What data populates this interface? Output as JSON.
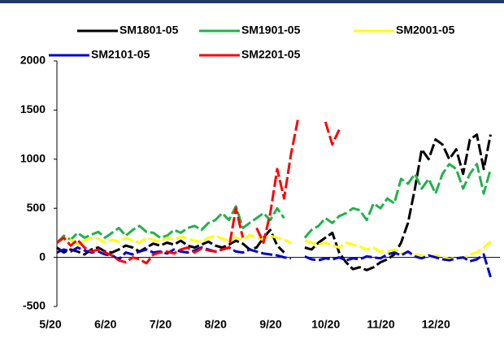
{
  "chart_data": {
    "type": "line",
    "categories": [
      "5/20",
      null,
      null,
      null,
      null,
      null,
      null,
      null,
      "6/20",
      null,
      null,
      null,
      null,
      null,
      null,
      null,
      "7/20",
      null,
      null,
      null,
      null,
      null,
      null,
      null,
      "8/20",
      null,
      null,
      null,
      null,
      null,
      null,
      null,
      "9/20",
      null,
      null,
      null,
      null,
      null,
      null,
      null,
      "10/20",
      null,
      null,
      null,
      null,
      null,
      null,
      null,
      "11/20",
      null,
      null,
      null,
      null,
      null,
      null,
      null,
      "12/20",
      null,
      null,
      null,
      null,
      null,
      null,
      null
    ],
    "series": [
      {
        "name": "SM1801-05",
        "color": "#000000",
        "values": [
          100,
          50,
          80,
          60,
          30,
          80,
          100,
          60,
          50,
          80,
          120,
          100,
          60,
          100,
          140,
          120,
          150,
          130,
          170,
          120,
          100,
          130,
          160,
          120,
          100,
          130,
          170,
          140,
          80,
          100,
          200,
          280,
          120,
          50,
          null,
          null,
          100,
          80,
          150,
          200,
          250,
          50,
          -50,
          -120,
          -100,
          -130,
          -100,
          -50,
          -20,
          30,
          150,
          350,
          700,
          1100,
          1000,
          1200,
          1150,
          1000,
          1100,
          850,
          1200,
          1250,
          900,
          1250
        ]
      },
      {
        "name": "SM1901-05",
        "color": "#22b14c",
        "values": [
          150,
          220,
          180,
          250,
          200,
          230,
          260,
          200,
          250,
          300,
          220,
          280,
          320,
          260,
          250,
          200,
          220,
          280,
          250,
          300,
          320,
          280,
          350,
          380,
          450,
          380,
          520,
          300,
          350,
          400,
          450,
          380,
          500,
          400,
          null,
          null,
          200,
          280,
          320,
          400,
          350,
          420,
          450,
          500,
          480,
          380,
          550,
          500,
          600,
          550,
          800,
          750,
          850,
          700,
          800,
          650,
          850,
          950,
          900,
          700,
          850,
          950,
          650,
          900
        ]
      },
      {
        "name": "SM2001-05",
        "color": "#ffff00",
        "values": [
          150,
          200,
          180,
          130,
          170,
          200,
          190,
          150,
          180,
          160,
          200,
          170,
          150,
          200,
          180,
          160,
          200,
          180,
          210,
          190,
          170,
          160,
          200,
          220,
          190,
          170,
          200,
          180,
          230,
          200,
          180,
          220,
          200,
          180,
          150,
          null,
          170,
          150,
          130,
          150,
          120,
          100,
          150,
          130,
          110,
          80,
          100,
          60,
          60,
          80,
          40,
          50,
          30,
          20,
          0,
          20,
          10,
          -20,
          0,
          -10,
          30,
          50,
          100,
          160
        ]
      },
      {
        "name": "SM2101-05",
        "color": "#0000cc",
        "values": [
          50,
          80,
          60,
          100,
          70,
          50,
          60,
          30,
          20,
          -20,
          50,
          30,
          60,
          80,
          50,
          60,
          40,
          80,
          60,
          50,
          70,
          100,
          80,
          60,
          80,
          100,
          60,
          50,
          80,
          60,
          40,
          30,
          20,
          0,
          -10,
          null,
          10,
          -20,
          -30,
          -10,
          -20,
          0,
          -30,
          -10,
          -20,
          10,
          0,
          -10,
          30,
          50,
          20,
          60,
          10,
          -10,
          20,
          0,
          -20,
          -30,
          -10,
          0,
          -40,
          -20,
          30,
          -200
        ]
      },
      {
        "name": "SM2201-05",
        "color": "#ff0000",
        "values": [
          150,
          200,
          120,
          180,
          100,
          60,
          80,
          50,
          20,
          -30,
          -50,
          0,
          -20,
          -60,
          30,
          50,
          60,
          40,
          80,
          100,
          50,
          90,
          70,
          60,
          80,
          100,
          500,
          200,
          null,
          300,
          150,
          450,
          900,
          600,
          1050,
          1400,
          null,
          null,
          null,
          1380,
          1150,
          1300,
          null,
          null,
          null,
          null,
          null,
          null,
          null,
          null,
          null,
          null,
          null,
          null,
          null,
          null,
          null,
          null,
          null,
          null,
          null,
          null,
          null,
          null
        ]
      }
    ],
    "ylim": [
      -500,
      2000
    ],
    "yticks": [
      -500,
      0,
      500,
      1000,
      1500,
      2000
    ],
    "grid": false,
    "legend": "top"
  }
}
